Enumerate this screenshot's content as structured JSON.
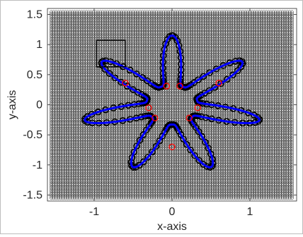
{
  "chart_data": {
    "type": "scatter",
    "xlabel": "x-axis",
    "ylabel": "y-axis",
    "xlim": [
      -1.6,
      1.6
    ],
    "ylim": [
      -1.6,
      1.6
    ],
    "xticks": [
      -1,
      0,
      1
    ],
    "xtick_labels": [
      "-1",
      "0",
      "1"
    ],
    "yticks": [
      1.5,
      1,
      0.5,
      0,
      -0.5,
      -1,
      -1.5
    ],
    "ytick_labels": [
      "1.5",
      "1",
      "0.5",
      "0",
      "-0.5",
      "-1",
      "-1.5"
    ],
    "grid_region": {
      "x": [
        -1.55,
        1.55
      ],
      "y": [
        -1.55,
        1.55
      ],
      "step": 0.03
    },
    "grid_on": false,
    "legend": "none",
    "shape": {
      "description_points": "star-shaped curve with 7 lobes",
      "lobes": 7,
      "inner_radius": 0.33,
      "outer_radius": 1.15,
      "rotation_deg": 90,
      "closed_curve_color": "#0000ff",
      "band_marker_color": "#000000",
      "inner_marker_color": "#ff0000",
      "inner_marker_points": [
        {
          "x": -0.6,
          "y": 0.36
        },
        {
          "x": -0.07,
          "y": 0.31
        },
        {
          "x": 0.1,
          "y": 0.31
        },
        {
          "x": 0.6,
          "y": 0.36
        },
        {
          "x": 0.33,
          "y": -0.05
        },
        {
          "x": 0.22,
          "y": -0.22
        },
        {
          "x": -0.22,
          "y": -0.22
        },
        {
          "x": -0.3,
          "y": -0.05
        },
        {
          "x": 0.0,
          "y": -0.7
        }
      ]
    },
    "inset_box": {
      "x": [
        -0.97,
        -0.6
      ],
      "y": [
        0.63,
        1.07
      ],
      "color": "#000000"
    }
  },
  "colors": {
    "axis": "#262626",
    "grid_point": "#000000",
    "curve": "#0000ff",
    "highlight": "#ff0000"
  }
}
